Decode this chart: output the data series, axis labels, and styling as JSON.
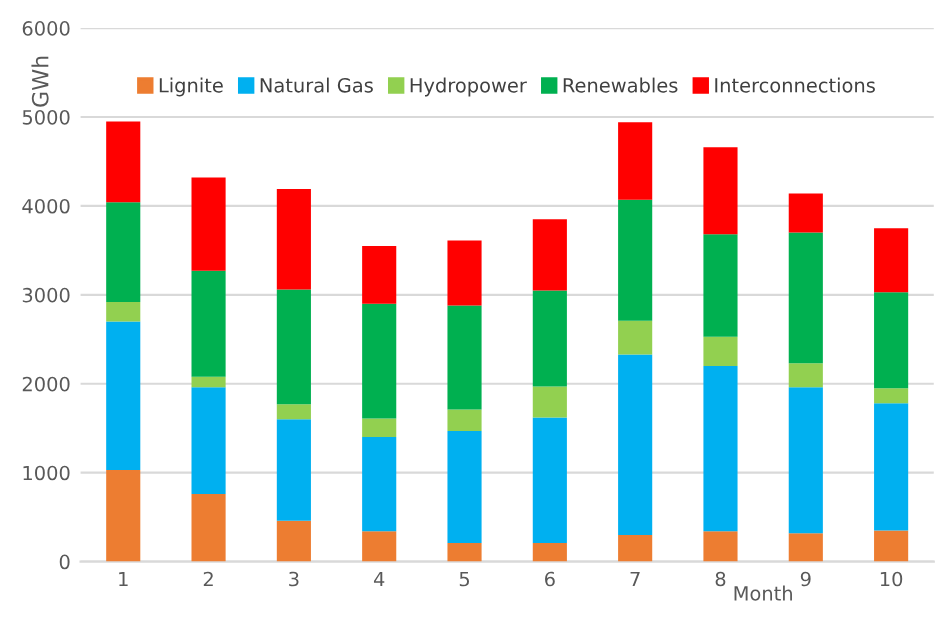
{
  "chart_data": {
    "type": "bar",
    "stacked": true,
    "xlabel": "Month",
    "ylabel": "GWh",
    "categories": [
      "1",
      "2",
      "3",
      "4",
      "5",
      "6",
      "7",
      "8",
      "9",
      "10"
    ],
    "series": [
      {
        "name": "Lignite",
        "color": "#ed7d31",
        "values": [
          1030,
          760,
          460,
          340,
          210,
          210,
          300,
          340,
          320,
          350
        ]
      },
      {
        "name": "Natural Gas",
        "color": "#00b0f0",
        "values": [
          1670,
          1200,
          1140,
          1060,
          1260,
          1410,
          2030,
          1860,
          1640,
          1430
        ]
      },
      {
        "name": "Hydropower",
        "color": "#92d050",
        "values": [
          220,
          120,
          170,
          210,
          240,
          350,
          380,
          330,
          270,
          170
        ]
      },
      {
        "name": "Renewables",
        "color": "#00b050",
        "values": [
          1120,
          1190,
          1290,
          1290,
          1170,
          1080,
          1360,
          1150,
          1470,
          1080
        ]
      },
      {
        "name": "Interconnections",
        "color": "#ff0000",
        "values": [
          910,
          1050,
          1130,
          650,
          730,
          800,
          870,
          980,
          440,
          720
        ]
      }
    ],
    "ylim": [
      0,
      6000
    ],
    "yticks": [
      0,
      1000,
      2000,
      3000,
      4000,
      5000,
      6000
    ],
    "grid": "y",
    "legend": "top"
  }
}
